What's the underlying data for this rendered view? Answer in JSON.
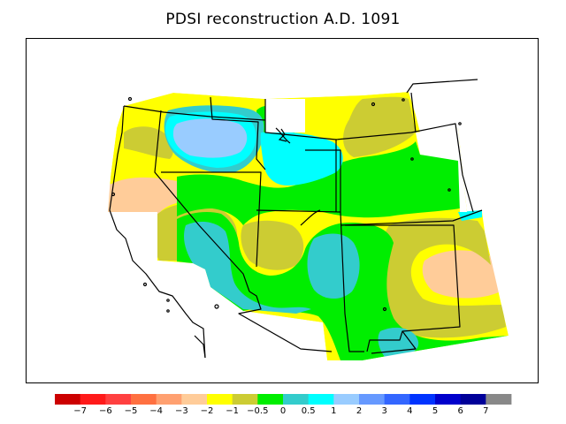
{
  "title": "PDSI reconstruction A.D. 1091",
  "map": {
    "type": "filled-contour-map",
    "region": "Western United States"
  },
  "colorbar": {
    "colors": [
      "#cc0000",
      "#ff1a1a",
      "#ff4040",
      "#ff7040",
      "#ffa070",
      "#ffcc99",
      "#ffff00",
      "#cccc33",
      "#00ee00",
      "#33cccc",
      "#00ffff",
      "#99ccff",
      "#6699ff",
      "#3366ff",
      "#0033ff",
      "#0000cc",
      "#000099",
      "#888888"
    ],
    "tick_labels": [
      "−7",
      "−6",
      "−5",
      "−4",
      "−3",
      "−2",
      "−1",
      "−0.5",
      "0",
      "0.5",
      "1",
      "2",
      "3",
      "4",
      "5",
      "6",
      "7"
    ]
  },
  "legend_colors": {
    "peach": "#ffcc99",
    "yellow": "#ffff00",
    "olive": "#cccc33",
    "green": "#00ee00",
    "teal": "#33cccc",
    "cyan": "#00ffff",
    "lightblue": "#99ccff"
  }
}
